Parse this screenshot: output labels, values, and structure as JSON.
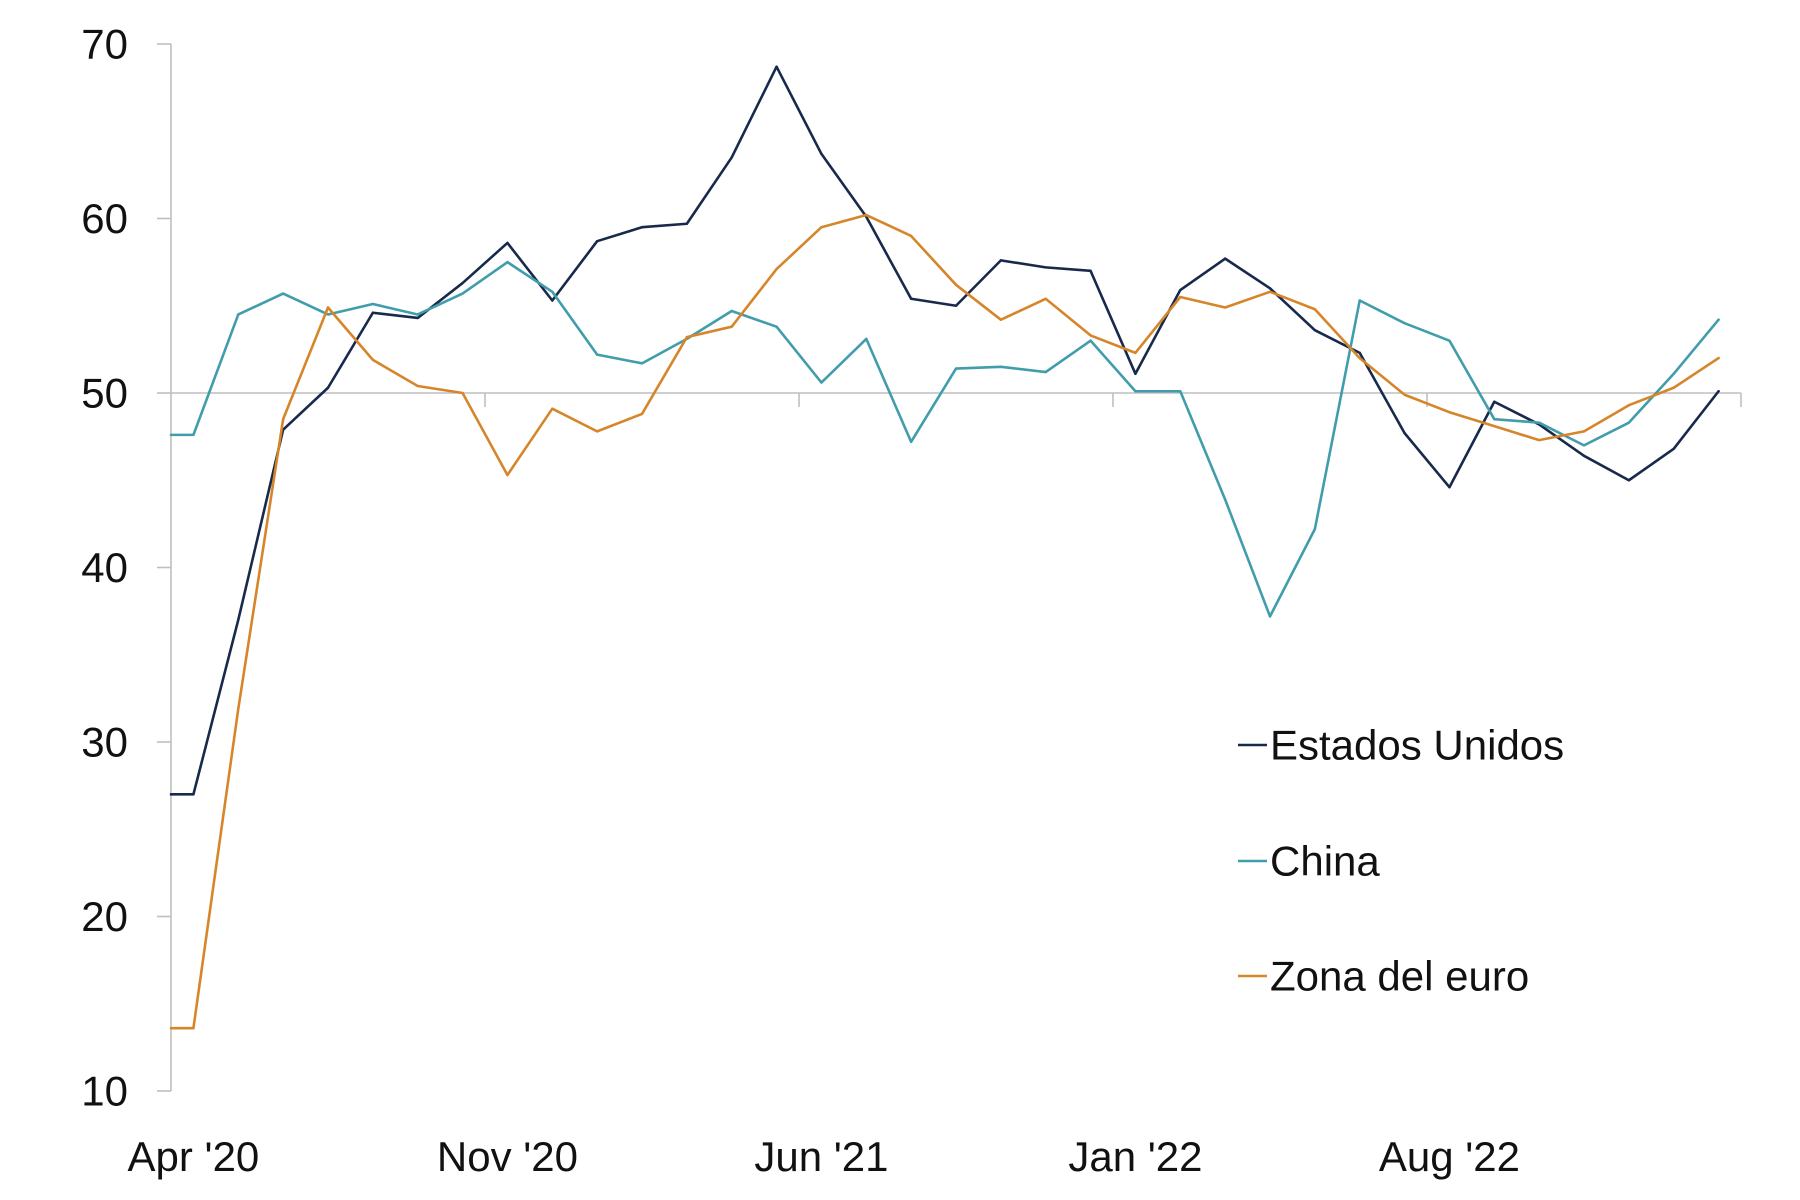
{
  "chart_data": {
    "type": "line",
    "x": [
      "2020-04",
      "2020-05",
      "2020-06",
      "2020-07",
      "2020-08",
      "2020-09",
      "2020-10",
      "2020-11",
      "2020-12",
      "2021-01",
      "2021-02",
      "2021-03",
      "2021-04",
      "2021-05",
      "2021-06",
      "2021-07",
      "2021-08",
      "2021-09",
      "2021-10",
      "2021-11",
      "2021-12",
      "2022-01",
      "2022-02",
      "2022-03",
      "2022-04",
      "2022-05",
      "2022-06",
      "2022-07",
      "2022-08",
      "2022-09",
      "2022-10",
      "2022-11",
      "2022-12",
      "2023-01",
      "2023-02"
    ],
    "x_tick_labels": [
      "Apr '20",
      "Nov '20",
      "Jun '21",
      "Jan '22",
      "Aug '22"
    ],
    "y_ticks": [
      10,
      20,
      30,
      40,
      50,
      60,
      70
    ],
    "ylim": [
      10,
      70
    ],
    "x_axis_at": 50,
    "grid": false,
    "legend": "right",
    "series": [
      {
        "name": "Estados Unidos",
        "color": "#182a4c",
        "values": [
          27.0,
          37.0,
          47.9,
          50.3,
          54.6,
          54.3,
          56.3,
          58.6,
          55.3,
          58.7,
          59.5,
          59.7,
          63.5,
          68.7,
          63.7,
          60.1,
          55.4,
          55.0,
          57.6,
          57.2,
          57.0,
          51.1,
          55.9,
          57.7,
          56.0,
          53.6,
          52.3,
          47.7,
          44.6,
          49.5,
          48.2,
          46.4,
          45.0,
          46.8,
          50.1
        ]
      },
      {
        "name": "China",
        "color": "#419dab",
        "values": [
          47.6,
          54.5,
          55.7,
          54.5,
          55.1,
          54.5,
          55.7,
          57.5,
          55.8,
          52.2,
          51.7,
          53.1,
          54.7,
          53.8,
          50.6,
          53.1,
          47.2,
          51.4,
          51.5,
          51.2,
          53.0,
          50.1,
          50.1,
          43.9,
          37.2,
          42.2,
          55.3,
          54.0,
          53.0,
          48.5,
          48.3,
          47.0,
          48.3,
          51.1,
          54.2
        ]
      },
      {
        "name": "Zona del euro",
        "color": "#d6862a",
        "values": [
          13.6,
          31.9,
          48.5,
          54.9,
          51.9,
          50.4,
          50.0,
          45.3,
          49.1,
          47.8,
          48.8,
          53.2,
          53.8,
          57.1,
          59.5,
          60.2,
          59.0,
          56.2,
          54.2,
          55.4,
          53.3,
          52.3,
          55.5,
          54.9,
          55.8,
          54.8,
          52.0,
          49.9,
          48.9,
          48.1,
          47.3,
          47.8,
          49.3,
          50.3,
          52.0
        ]
      }
    ]
  }
}
